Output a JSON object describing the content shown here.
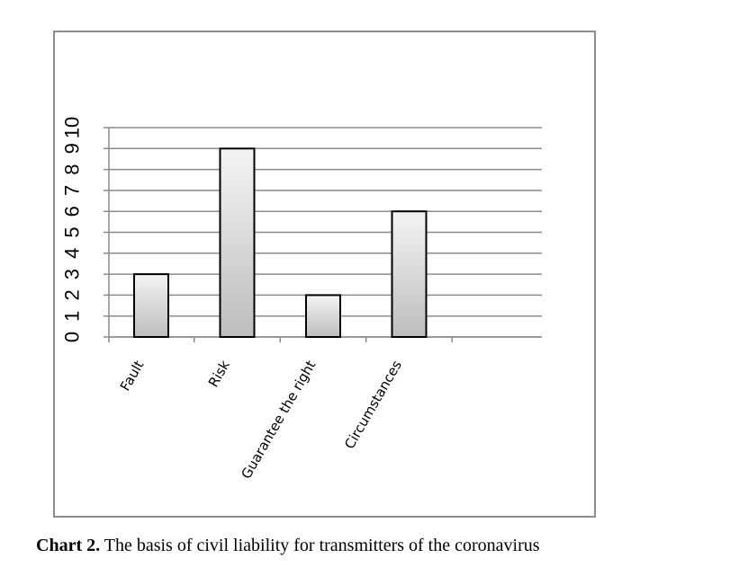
{
  "chart_data": {
    "type": "bar",
    "categories": [
      "Fault",
      "Risk",
      "Guarantee the right",
      "Circumstances"
    ],
    "values": [
      3,
      9,
      2,
      6
    ],
    "ylim": [
      0,
      10
    ],
    "yticks": [
      "0",
      "1",
      "2",
      "3",
      "4",
      "5",
      "6",
      "7",
      "8",
      "9",
      "10"
    ],
    "grid": true,
    "legend": "none",
    "colors": {
      "bar_top": "#f4f4f4",
      "bar_bottom": "#bdbdbd",
      "bar_stroke": "#000000",
      "grid": "#8c8c8c"
    }
  },
  "caption": {
    "label": "Chart 2.",
    "text": " The basis of civil liability for transmitters of the coronavirus"
  }
}
